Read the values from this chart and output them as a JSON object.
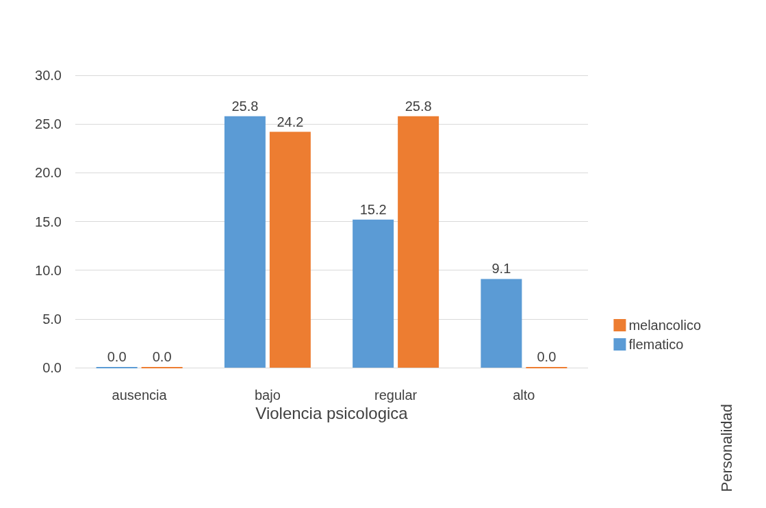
{
  "chart_data": {
    "type": "bar",
    "xlabel": "Violencia psicologica",
    "legend_title": "Personalidad",
    "categories": [
      "ausencia",
      "bajo",
      "regular",
      "alto"
    ],
    "series": [
      {
        "name": "flematico",
        "color": "#5b9bd5",
        "values": [
          0,
          25.8,
          15.2,
          9.1
        ],
        "value_labels": [
          "0.0",
          "25.8",
          "15.2",
          "9.1"
        ]
      },
      {
        "name": "melancolico",
        "color": "#ed7d31",
        "values": [
          0,
          24.2,
          25.8,
          0
        ],
        "value_labels": [
          "0.0",
          "24.2",
          "25.8",
          "0.0"
        ]
      }
    ],
    "ylim": [
      0,
      30
    ],
    "yticks": [
      {
        "value": 0,
        "label": "0.0"
      },
      {
        "value": 5,
        "label": "5.0"
      },
      {
        "value": 10,
        "label": "10.0"
      },
      {
        "value": 15,
        "label": "15.0"
      },
      {
        "value": 20,
        "label": "20.0"
      },
      {
        "value": 25,
        "label": "25.0"
      },
      {
        "value": 30,
        "label": "30.0"
      }
    ],
    "grid": "y",
    "legend": "right"
  }
}
